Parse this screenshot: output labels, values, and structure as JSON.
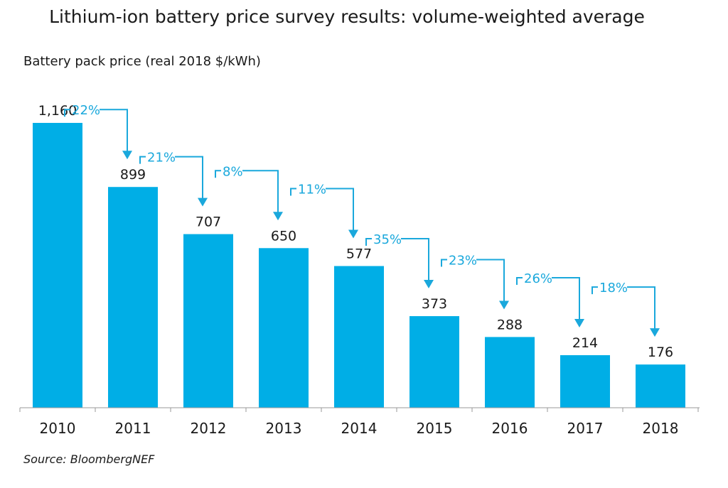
{
  "chart_data": {
    "type": "bar",
    "title": "Lithium-ion battery price survey results: volume-weighted average",
    "ylabel": "Battery pack price (real 2018 $/kWh)",
    "xlabel": "",
    "categories": [
      "2010",
      "2011",
      "2012",
      "2013",
      "2014",
      "2015",
      "2016",
      "2017",
      "2018"
    ],
    "values": [
      1160,
      899,
      707,
      650,
      577,
      373,
      288,
      214,
      176
    ],
    "value_labels": [
      "1,160",
      "899",
      "707",
      "650",
      "577",
      "373",
      "288",
      "214",
      "176"
    ],
    "annotations": [
      "22%",
      "21%",
      "8%",
      "11%",
      "35%",
      "23%",
      "26%",
      "18%"
    ],
    "ylim": [
      0,
      1160
    ],
    "grid": false,
    "colors": {
      "bar": "#00aee6",
      "annotation": "#1aa8dc",
      "axis": "#999999"
    },
    "source": "Source: BloombergNEF"
  }
}
